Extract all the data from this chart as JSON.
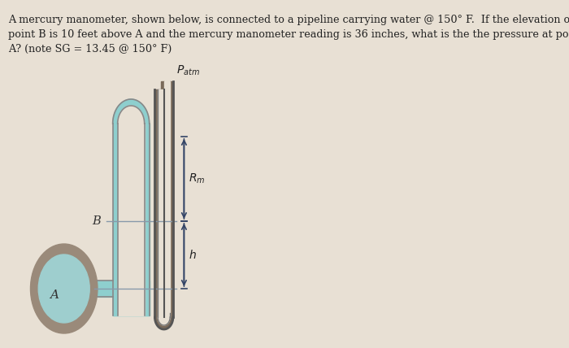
{
  "bg_color": "#e8e0d4",
  "teal": "#8ecfce",
  "teal_dark": "#7abfbe",
  "mercury_color": "#7a6a5a",
  "tube_outline": "#888888",
  "text_color": "#222222",
  "line_color": "#888899",
  "arrow_color": "#334466",
  "line1": "A mercury manometer, shown below, is connected to a pipeline carrying water @ 150° F.  If the elevation of",
  "line2": "point B is 10 feet above A and the mercury manometer reading is 36 inches, what is the the pressure at point",
  "line3": "A? (note SG = 13.45 @ 150° F)",
  "label_A": "A",
  "label_B": "B",
  "circle_outer_color": "#9a8a7a",
  "circle_inner_color": "#9ecece"
}
